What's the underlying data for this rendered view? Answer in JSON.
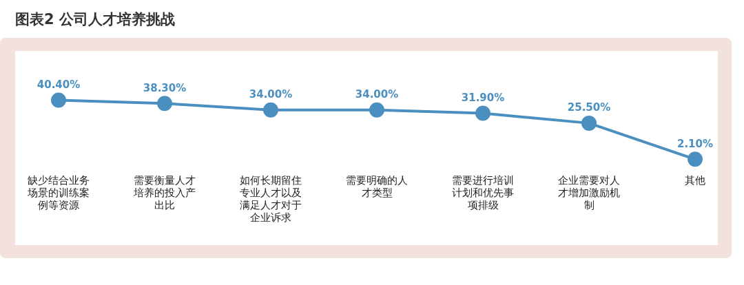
{
  "chart_data": {
    "type": "line",
    "title": "图表2 公司人才培养挑战",
    "categories": [
      "缺少结合业务场景的训练案例等资源",
      "需要衡量人才培养的投入产出比",
      "如何长期留住专业人才以及满足人才对于企业诉求",
      "需要明确的人才类型",
      "需要进行培训计划和优先事项排级",
      "企业需要对人才增加激励机制",
      "其他"
    ],
    "series": [
      {
        "color": "#4a8fc0",
        "values": [
          40.4,
          38.3,
          34.0,
          34.0,
          31.9,
          25.5,
          2.1
        ],
        "value_labels": [
          "40.40%",
          "38.30%",
          "34.00%",
          "34.00%",
          "31.90%",
          "25.50%",
          "2.10%"
        ]
      }
    ],
    "tick_labels": "x",
    "grid": false,
    "legend": false,
    "marker": "circle",
    "line_style": "solid"
  }
}
